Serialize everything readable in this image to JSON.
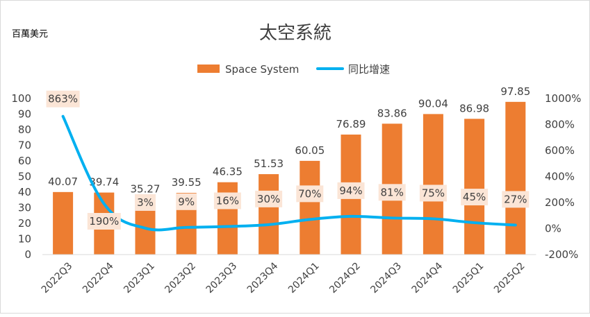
{
  "unit_label": "百萬美元",
  "chart_data": {
    "type": "bar",
    "title": "太空系統",
    "categories": [
      "2022Q3",
      "2022Q4",
      "2023Q1",
      "2023Q2",
      "2023Q3",
      "2023Q4",
      "2024Q1",
      "2024Q2",
      "2024Q3",
      "2024Q4",
      "2025Q1",
      "2025Q2"
    ],
    "series": [
      {
        "name": "Space System",
        "type": "bar",
        "axis": "left",
        "color": "#ED7D31",
        "values": [
          40.07,
          39.74,
          35.27,
          39.55,
          46.35,
          51.53,
          60.05,
          76.89,
          83.86,
          90.04,
          86.98,
          97.85
        ],
        "labels": [
          "40.07",
          "39.74",
          "35.27",
          "39.55",
          "46.35",
          "51.53",
          "60.05",
          "76.89",
          "83.86",
          "90.04",
          "86.98",
          "97.85"
        ]
      },
      {
        "name": "同比增速",
        "type": "line",
        "axis": "right",
        "color": "#00B0F0",
        "values": [
          863,
          190,
          3,
          9,
          16,
          30,
          70,
          94,
          81,
          75,
          45,
          27
        ],
        "labels": [
          "863%",
          "190%",
          "3%",
          "9%",
          "16%",
          "30%",
          "70%",
          "94%",
          "81%",
          "75%",
          "45%",
          "27%"
        ]
      }
    ],
    "y_left": {
      "min": 0,
      "max": 100,
      "ticks": [
        "0",
        "10",
        "20",
        "30",
        "40",
        "50",
        "60",
        "70",
        "80",
        "90",
        "100"
      ]
    },
    "y_right": {
      "min": -200,
      "max": 1000,
      "ticks": [
        "-200%",
        "0%",
        "200%",
        "400%",
        "600%",
        "800%",
        "1000%"
      ]
    },
    "legend_position": "top",
    "grid": false
  }
}
